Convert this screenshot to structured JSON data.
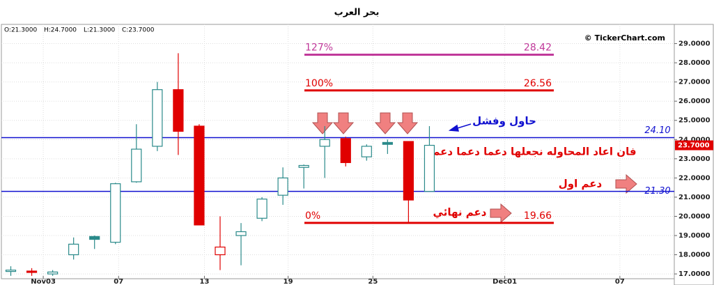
{
  "chart_data": {
    "type": "candlestick",
    "title": "بحر العرب",
    "ohlc_labels": [
      "O:21.3000",
      "H:24.7000",
      "L:21.3000",
      "C:23.7000"
    ],
    "copyright": "© TickerChart.com",
    "x": [
      0,
      1,
      2,
      3,
      4,
      5,
      6,
      7,
      8,
      9,
      10,
      11,
      12,
      13,
      14,
      15,
      16,
      17,
      18,
      19,
      20
    ],
    "open": [
      17.2,
      17.15,
      17.0,
      18.0,
      18.8,
      18.65,
      21.8,
      23.65,
      26.6,
      24.7,
      18.0,
      19.0,
      19.9,
      21.1,
      22.55,
      23.65,
      24.05,
      23.1,
      23.75,
      23.9,
      21.3
    ],
    "high": [
      17.4,
      17.3,
      17.2,
      18.9,
      19.0,
      21.75,
      24.8,
      27.0,
      28.5,
      24.8,
      20.0,
      19.65,
      21.0,
      22.55,
      22.7,
      24.7,
      24.15,
      23.75,
      24.0,
      23.9,
      24.7
    ],
    "low": [
      16.9,
      16.9,
      16.9,
      17.75,
      18.3,
      18.55,
      21.75,
      23.4,
      23.2,
      19.55,
      17.2,
      17.45,
      19.75,
      20.6,
      21.45,
      22.0,
      22.6,
      22.9,
      23.25,
      19.7,
      21.3
    ],
    "close": [
      17.2,
      17.1,
      17.1,
      18.55,
      18.95,
      21.7,
      23.5,
      26.6,
      24.43,
      19.55,
      18.4,
      19.2,
      20.9,
      22.0,
      22.65,
      24.0,
      22.8,
      23.65,
      23.85,
      20.85,
      23.7
    ],
    "colors": [
      "#2a8a8a",
      "#e00000",
      "#2a8a8a",
      "#2a8a8a",
      "#2a8a8a",
      "#2a8a8a",
      "#2a8a8a",
      "#2a8a8a",
      "#e00000",
      "#e00000",
      "#e00000",
      "#2a8a8a",
      "#2a8a8a",
      "#2a8a8a",
      "#2a8a8a",
      "#2a8a8a",
      "#e00000",
      "#2a8a8a",
      "#2a8a8a",
      "#e00000",
      "#2a8a8a"
    ],
    "filled": [
      false,
      true,
      false,
      false,
      true,
      false,
      false,
      false,
      true,
      true,
      false,
      false,
      false,
      false,
      false,
      false,
      true,
      false,
      true,
      true,
      false
    ],
    "xlim": [
      -0.45,
      31.7
    ],
    "xticks": [
      {
        "value": 1.55,
        "label": "Nov03"
      },
      {
        "value": 5.15,
        "label": "07"
      },
      {
        "value": 9.25,
        "label": "13"
      },
      {
        "value": 13.25,
        "label": "19"
      },
      {
        "value": 17.3,
        "label": "25"
      },
      {
        "value": 23.6,
        "label": "Dec01"
      },
      {
        "value": 29.1,
        "label": "07"
      }
    ],
    "ylim": [
      16.75,
      30
    ],
    "yticks": [
      {
        "value": 17,
        "label": "17.0000"
      },
      {
        "value": 18,
        "label": "18.0000"
      },
      {
        "value": 19,
        "label": "19.0000"
      },
      {
        "value": 20,
        "label": "20.0000"
      },
      {
        "value": 21,
        "label": "21.0000"
      },
      {
        "value": 22,
        "label": "22.0000"
      },
      {
        "value": 23,
        "label": "23.0000"
      },
      {
        "value": 24,
        "label": "24.0000"
      },
      {
        "value": 25,
        "label": "25.0000"
      },
      {
        "value": 26,
        "label": "26.0000"
      },
      {
        "value": 27,
        "label": "27.0000"
      },
      {
        "value": 28,
        "label": "28.0000"
      },
      {
        "value": 29,
        "label": "29.0000"
      }
    ],
    "grid": true,
    "last_price": {
      "value": 23.7,
      "label": "23.7000",
      "color": "#e00000"
    },
    "fib_levels": [
      {
        "name": "127%",
        "value": 28.42,
        "color": "#c0399a"
      },
      {
        "name": "100%",
        "value": 26.56,
        "color": "#e00000"
      },
      {
        "name": "0%",
        "value": 19.66,
        "color": "#e00000"
      }
    ],
    "hlines": [
      {
        "value": 24.1,
        "label": "24.10",
        "color": "#1010d0"
      },
      {
        "value": 21.3,
        "label": "21.30",
        "color": "#1010d0"
      }
    ],
    "annotations": [
      "حاول وفشل",
      "فان اعاد المحاوله نجعلها دعما دعما دعما",
      "دعم اول",
      "دعم نهائي"
    ]
  }
}
